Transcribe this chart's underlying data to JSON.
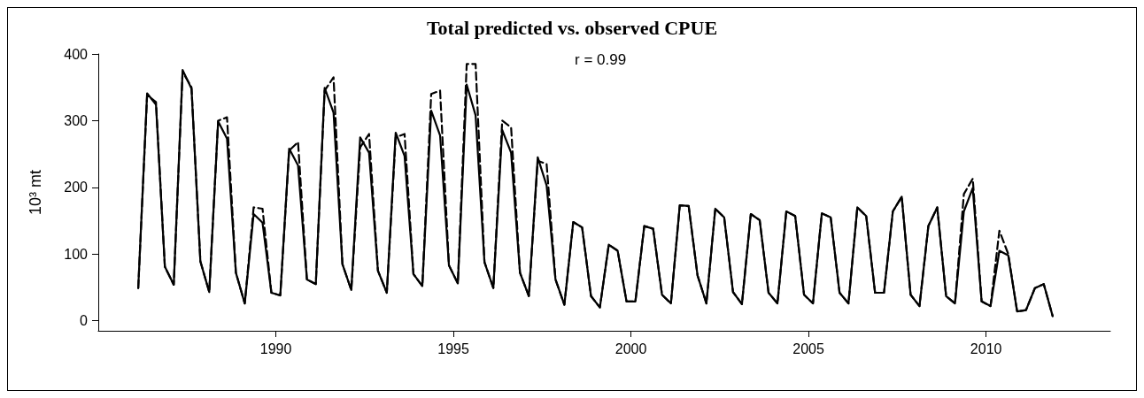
{
  "chart_data": {
    "type": "line",
    "title": "Total predicted vs. observed CPUE",
    "ylabel": "10³ mt",
    "annotations": [
      "r = 0.99"
    ],
    "x": [
      1986.125,
      1986.375,
      1986.625,
      1986.875,
      1987.125,
      1987.375,
      1987.625,
      1987.875,
      1988.125,
      1988.375,
      1988.625,
      1988.875,
      1989.125,
      1989.375,
      1989.625,
      1989.875,
      1990.125,
      1990.375,
      1990.625,
      1990.875,
      1991.125,
      1991.375,
      1991.625,
      1991.875,
      1992.125,
      1992.375,
      1992.625,
      1992.875,
      1993.125,
      1993.375,
      1993.625,
      1993.875,
      1994.125,
      1994.375,
      1994.625,
      1994.875,
      1995.125,
      1995.375,
      1995.625,
      1995.875,
      1996.125,
      1996.375,
      1996.625,
      1996.875,
      1997.125,
      1997.375,
      1997.625,
      1997.875,
      1998.125,
      1998.375,
      1998.625,
      1998.875,
      1999.125,
      1999.375,
      1999.625,
      1999.875,
      2000.125,
      2000.375,
      2000.625,
      2000.875,
      2001.125,
      2001.375,
      2001.625,
      2001.875,
      2002.125,
      2002.375,
      2002.625,
      2002.875,
      2003.125,
      2003.375,
      2003.625,
      2003.875,
      2004.125,
      2004.375,
      2004.625,
      2004.875,
      2005.125,
      2005.375,
      2005.625,
      2005.875,
      2006.125,
      2006.375,
      2006.625,
      2006.875,
      2007.125,
      2007.375,
      2007.625,
      2007.875,
      2008.125,
      2008.375,
      2008.625,
      2008.875,
      2009.125,
      2009.375,
      2009.625,
      2009.875,
      2010.125,
      2010.375,
      2010.625,
      2010.875,
      2011.125,
      2011.375,
      2011.625,
      2011.875
    ],
    "series": [
      {
        "color": "#000000",
        "line_style": "dashed",
        "values": [
          49,
          338,
          328,
          81,
          54,
          373,
          350,
          89,
          43,
          300,
          305,
          72,
          26,
          170,
          168,
          42,
          38,
          255,
          268,
          62,
          55,
          345,
          365,
          85,
          46,
          260,
          280,
          75,
          42,
          275,
          280,
          70,
          52,
          340,
          345,
          83,
          56,
          385,
          385,
          88,
          49,
          300,
          290,
          72,
          37,
          240,
          235,
          62,
          24,
          148,
          140,
          37,
          20,
          114,
          105,
          29,
          29,
          142,
          138,
          39,
          26,
          173,
          172,
          68,
          26,
          168,
          155,
          43,
          25,
          160,
          151,
          42,
          26,
          164,
          157,
          39,
          26,
          161,
          155,
          42,
          26,
          170,
          157,
          42,
          42,
          164,
          186,
          39,
          22,
          142,
          170,
          37,
          26,
          190,
          213,
          29,
          22,
          135,
          100,
          14,
          16,
          49,
          55,
          7
        ]
      },
      {
        "color": "#000000",
        "line_style": "solid",
        "values": [
          49,
          341,
          324,
          81,
          54,
          376,
          348,
          89,
          43,
          299,
          273,
          72,
          26,
          160,
          147,
          42,
          38,
          258,
          233,
          62,
          55,
          349,
          312,
          85,
          46,
          275,
          252,
          75,
          42,
          282,
          247,
          70,
          52,
          315,
          278,
          83,
          56,
          354,
          308,
          88,
          49,
          286,
          252,
          72,
          37,
          245,
          203,
          62,
          24,
          148,
          140,
          37,
          20,
          114,
          105,
          29,
          29,
          142,
          138,
          39,
          26,
          173,
          172,
          68,
          26,
          168,
          155,
          43,
          25,
          160,
          151,
          42,
          26,
          164,
          157,
          39,
          26,
          161,
          155,
          42,
          26,
          170,
          157,
          42,
          42,
          164,
          186,
          39,
          22,
          142,
          170,
          37,
          26,
          164,
          199,
          29,
          22,
          105,
          98,
          14,
          16,
          49,
          55,
          7
        ]
      }
    ],
    "xlim": [
      1985,
      2013.5
    ],
    "xticks": [
      1990,
      1995,
      2000,
      2005,
      2010
    ],
    "ylim": [
      -15,
      400
    ],
    "yticks": [
      0,
      100,
      200,
      300,
      400
    ],
    "grid": false,
    "marker": "none"
  }
}
